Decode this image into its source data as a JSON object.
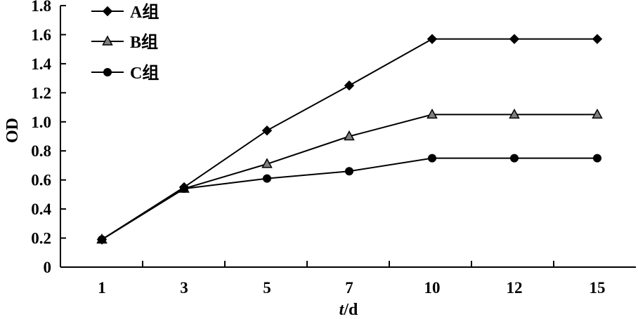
{
  "chart_data": {
    "type": "line",
    "categories": [
      "1",
      "3",
      "5",
      "7",
      "10",
      "12",
      "15"
    ],
    "xlabel": "t/d",
    "xlabel_italic_part": "t",
    "xlabel_rest": "/d",
    "ylabel": "OD",
    "ylim": [
      0,
      1.8
    ],
    "yticks": [
      "0",
      "0.2",
      "0.4",
      "0.6",
      "0.8",
      "1.0",
      "1.2",
      "1.4",
      "1.6",
      "1.8"
    ],
    "legend_position": "top-left",
    "grid": false,
    "series": [
      {
        "name": "A组",
        "marker": "diamond",
        "color": "#000000",
        "values": [
          0.19,
          0.55,
          0.94,
          1.25,
          1.57,
          1.57,
          1.57
        ]
      },
      {
        "name": "B组",
        "marker": "triangle",
        "color": "#000000",
        "marker_fill": "#808080",
        "values": [
          0.19,
          0.54,
          0.71,
          0.9,
          1.05,
          1.05,
          1.05
        ]
      },
      {
        "name": "C组",
        "marker": "circle",
        "color": "#000000",
        "values": [
          0.19,
          0.54,
          0.61,
          0.66,
          0.75,
          0.75,
          0.75
        ]
      }
    ]
  }
}
